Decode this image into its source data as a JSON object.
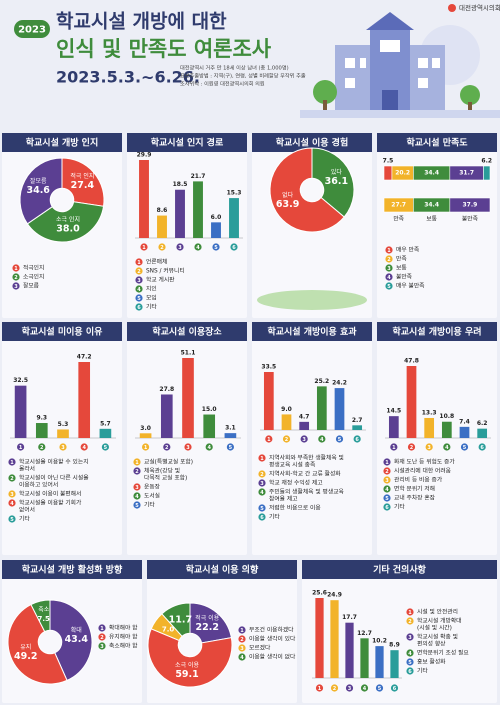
{
  "header": {
    "badge": "2023",
    "title_line1": "학교시설 개방에 대한",
    "title_line2": "인식 및 만족도 여론조사",
    "period": "2023.5.3.~6.26.",
    "info": [
      "대전광역시 거주 만 18세 이상 남녀 (총 1,000명)",
      "표본추출방법 : 지역(구), 연령, 성별 비례할당 무작위 추출",
      "조사위탁 : 이원영 대전광역시의회 의원"
    ],
    "logo": "대전광역시의회"
  },
  "chart_data": [
    {
      "type": "pie",
      "title": "학교시설 개방 인지",
      "categories": [
        "적극인지",
        "소극인지",
        "잘모름"
      ],
      "slice_labels": [
        "적극 인지",
        "소극 인지",
        "잘모름"
      ],
      "values": [
        27.4,
        38.0,
        34.6
      ],
      "value_labels": [
        "27.4",
        "38.0",
        "34.6"
      ],
      "colors": [
        "#e5483b",
        "#3f8c3c",
        "#5b3f92"
      ],
      "markers": [
        "1",
        "2",
        "3"
      ]
    },
    {
      "type": "bar",
      "title": "학교시설 인지 경로",
      "categories": [
        "언론매체",
        "SNS / 커뮤니티",
        "학교 게시판",
        "지인",
        "모임",
        "기타"
      ],
      "values": [
        29.9,
        8.6,
        18.5,
        21.7,
        6.0,
        15.3
      ],
      "value_labels": [
        "29.9",
        "8.6",
        "18.5",
        "21.7",
        "6.0",
        "15.3"
      ],
      "colors": [
        "#e5483b",
        "#f2b32a",
        "#5b3f92",
        "#3f8c3c",
        "#3b6fc4",
        "#2a9d9a"
      ],
      "markers": [
        "1",
        "2",
        "3",
        "4",
        "5",
        "6"
      ]
    },
    {
      "type": "pie",
      "title": "학교시설 이용 경험",
      "categories": [
        "있다",
        "없다"
      ],
      "values": [
        36.1,
        63.9
      ],
      "value_labels": [
        "36.1",
        "63.9"
      ],
      "colors": [
        "#3f8c3c",
        "#e5483b"
      ]
    },
    {
      "type": "stacked",
      "title": "학교시설 만족도",
      "categories": [
        "매우 만족",
        "만족",
        "보통",
        "불만족",
        "매우 불만족"
      ],
      "values": [
        7.5,
        20.2,
        34.4,
        31.7,
        6.2
      ],
      "value_labels": [
        "7.5",
        "20.2",
        "34.4",
        "31.7",
        "6.2"
      ],
      "colors": [
        "#e5483b",
        "#f2b32a",
        "#3f8c3c",
        "#5b3f92",
        "#2a9d9a"
      ],
      "markers": [
        "1",
        "2",
        "3",
        "4",
        "5"
      ],
      "summary": {
        "categories": [
          "만족",
          "보통",
          "불만족"
        ],
        "values": [
          27.7,
          34.4,
          37.9
        ],
        "value_labels": [
          "27.7",
          "34.4",
          "37.9"
        ],
        "colors": [
          "#f2b32a",
          "#3f8c3c",
          "#5b3f92"
        ]
      }
    },
    {
      "type": "bar",
      "title": "학교시설 미이용 이유",
      "categories": [
        [
          "학교시설을 이용할 수 있는지",
          "몰라서"
        ],
        [
          "학교시설이 아닌 다른 시설을",
          "이용하고 있어서"
        ],
        "학교시설 이용이 불편해서",
        [
          "학교시설을 이용할 기회가",
          "없어서"
        ],
        "기타"
      ],
      "values": [
        32.5,
        9.3,
        5.3,
        47.2,
        5.7
      ],
      "value_labels": [
        "32.5",
        "9.3",
        "5.3",
        "47.2",
        "5.7"
      ],
      "colors": [
        "#5b3f92",
        "#3f8c3c",
        "#f2b32a",
        "#e5483b",
        "#2a9d9a"
      ],
      "markers": [
        "1",
        "2",
        "3",
        "4",
        "5"
      ]
    },
    {
      "type": "bar",
      "title": "학교시설 이용장소",
      "categories": [
        "교실(특별교실 포함)",
        [
          "체육관(강당 및",
          "다목적 교실 포함)"
        ],
        "운동장",
        "도서실",
        "기타"
      ],
      "values": [
        3.0,
        27.8,
        51.1,
        15.0,
        3.1
      ],
      "value_labels": [
        "3.0",
        "27.8",
        "51.1",
        "15.0",
        "3.1"
      ],
      "colors": [
        "#f2b32a",
        "#5b3f92",
        "#e5483b",
        "#3f8c3c",
        "#3b6fc4"
      ],
      "markers": [
        "1",
        "2",
        "3",
        "4",
        "5"
      ]
    },
    {
      "type": "bar",
      "title": "학교시설 개방이용 효과",
      "categories": [
        [
          "지역사회와 부족한 생활체육 및",
          "평생교육 시설 충족"
        ],
        "지역사회-학교 간 교류 활성화",
        "학교 재정 수익성 제고",
        [
          "주민들의 생활체육 및 평생교육",
          "참여율 제고"
        ],
        "저렴한 비용으로 이용",
        "기타"
      ],
      "values": [
        33.5,
        9.0,
        4.7,
        25.2,
        24.2,
        2.7
      ],
      "value_labels": [
        "33.5",
        "9.0",
        "4.7",
        "25.2",
        "24.2",
        "2.7"
      ],
      "colors": [
        "#e5483b",
        "#f2b32a",
        "#5b3f92",
        "#3f8c3c",
        "#3b6fc4",
        "#2a9d9a"
      ],
      "markers": [
        "1",
        "2",
        "3",
        "4",
        "5",
        "6"
      ]
    },
    {
      "type": "bar",
      "title": "학교시설 개방이용 우려",
      "categories": [
        "화재 도난 등 위험도 증가",
        "시설관리에 대한 어려움",
        "관리비 등 비용 증가",
        "면학 분위기 저해",
        "교내 주차장 혼잡",
        "기타"
      ],
      "values": [
        14.5,
        47.8,
        13.3,
        10.8,
        7.4,
        6.2
      ],
      "value_labels": [
        "14.5",
        "47.8",
        "13.3",
        "10.8",
        "7.4",
        "6.2"
      ],
      "colors": [
        "#5b3f92",
        "#e5483b",
        "#f2b32a",
        "#3f8c3c",
        "#3b6fc4",
        "#2a9d9a"
      ],
      "markers": [
        "1",
        "2",
        "3",
        "4",
        "5",
        "6"
      ]
    },
    {
      "type": "pie",
      "title": "학교시설 개방 활성화 방향",
      "categories": [
        "확대해야 함",
        "유지해야 함",
        "축소해야 함"
      ],
      "slice_labels": [
        "확대",
        "유지",
        "축소"
      ],
      "values": [
        43.4,
        49.2,
        7.5
      ],
      "value_labels": [
        "43.4",
        "49.2",
        "7.5"
      ],
      "colors": [
        "#5b3f92",
        "#e5483b",
        "#3f8c3c"
      ],
      "markers": [
        "1",
        "2",
        "3"
      ]
    },
    {
      "type": "pie",
      "title": "학교시설 이용 의향",
      "categories": [
        "무조건 이용하겠다",
        "이용할 생각이 있다",
        "모르겠다",
        "이용할 생각이 없다"
      ],
      "slice_labels": [
        "적극 이용",
        "소극 이용",
        null,
        null
      ],
      "values": [
        22.2,
        59.1,
        7.0,
        11.7
      ],
      "value_labels": [
        "22.2",
        "59.1",
        "7.0",
        "11.7"
      ],
      "colors": [
        "#5b3f92",
        "#e5483b",
        "#f2b32a",
        "#3f8c3c"
      ],
      "markers": [
        "1",
        "2",
        "3",
        "4"
      ]
    },
    {
      "type": "bar",
      "title": "기타 건의사항",
      "categories": [
        "시설 및 안전관리",
        [
          "학교시설 개방확대",
          "(시설 및 시간)"
        ],
        [
          "학교시설 확충 및",
          "편의성 향상"
        ],
        "면학분위기 조성 필요",
        "홍보 활성화",
        "기타"
      ],
      "values": [
        25.6,
        24.9,
        17.7,
        12.7,
        10.2,
        8.9
      ],
      "value_labels": [
        "25.6",
        "24.9",
        "17.7",
        "12.7",
        "10.2",
        "8.9"
      ],
      "colors": [
        "#e5483b",
        "#f2b32a",
        "#5b3f92",
        "#3f8c3c",
        "#3b6fc4",
        "#2a9d9a"
      ],
      "markers": [
        "1",
        "2",
        "3",
        "4",
        "5",
        "6"
      ]
    }
  ]
}
